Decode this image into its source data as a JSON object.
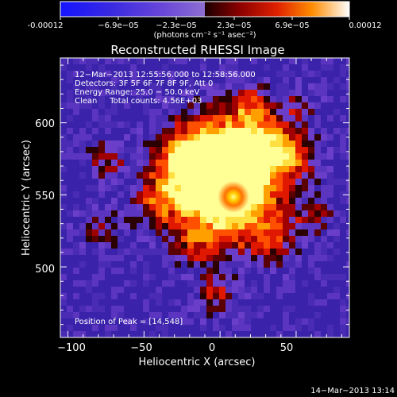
{
  "colorbar": {
    "tick_labels": [
      "-0.00012",
      "−6.9e−05",
      "−2.3e−05",
      "2.3e−05",
      "6.9e−05",
      "0.00012"
    ],
    "units_label": "(photons cm⁻² s⁻¹ asec⁻²)",
    "range": [
      -0.00012,
      0.00012
    ]
  },
  "plot": {
    "title": "Reconstructed RHESSI Image",
    "info_lines": [
      "12−Mar−2013 12:55:56.000 to 12:58:56.000",
      "Detectors: 3F 5F 6F 7F 8F 9F, Att 0",
      "Energy Range: 25.0 − 50.0 keV",
      "Clean     Total counts: 4.56E+03"
    ],
    "peak_label": "Position of Peak = [14,548]",
    "x_axis": {
      "label": "Heliocentric X (arcsec)",
      "tick_labels": [
        "−100",
        "−50",
        "0",
        "50"
      ],
      "range": [
        -105,
        85
      ]
    },
    "y_axis": {
      "label": "Heliocentric Y (arcsec)",
      "tick_labels": [
        "500",
        "550",
        "600"
      ],
      "range": [
        451,
        645
      ]
    },
    "peak": [
      14,
      548
    ]
  },
  "footer": {
    "timestamp": "14−Mar−2013 13:14"
  }
}
